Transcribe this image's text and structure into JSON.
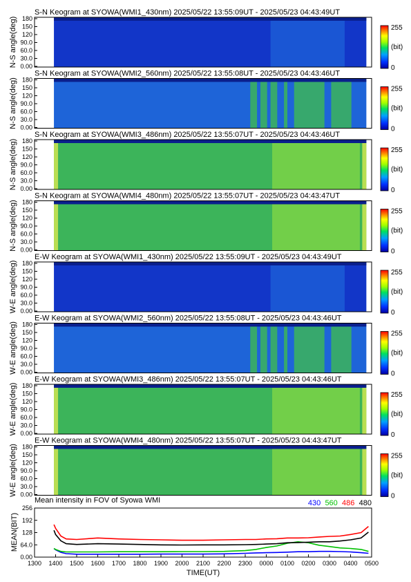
{
  "figure": {
    "panels": [
      {
        "direction": "S-N Keogram",
        "station": "SYOWA",
        "instrument": "WMI1_430nm",
        "start": "2025/05/22 13:55:09UT",
        "end": "2025/05/23 04:43:49UT",
        "ylabel": "N-S angle(deg)",
        "level": "weak",
        "title": "S-N Keogram at SYOWA(WMI1_430nm)   2025/05/22 13:55:09UT - 2025/05/23 04:43:49UT"
      },
      {
        "direction": "S-N Keogram",
        "station": "SYOWA",
        "instrument": "WMI2_560nm",
        "start": "2025/05/22 13:55:08UT",
        "end": "2025/05/23 04:43:46UT",
        "ylabel": "N-S angle(deg)",
        "level": "aurora",
        "title": "S-N Keogram at SYOWA(WMI2_560nm)   2025/05/22 13:55:08UT - 2025/05/23 04:43:46UT"
      },
      {
        "direction": "S-N Keogram",
        "station": "SYOWA",
        "instrument": "WMI3_486nm",
        "start": "2025/05/22 13:55:07UT",
        "end": "2025/05/23 04:43:46UT",
        "ylabel": "N-S angle(deg)",
        "level": "bright",
        "title": "S-N Keogram at SYOWA(WMI3_486nm)   2025/05/22 13:55:07UT - 2025/05/23 04:43:46UT"
      },
      {
        "direction": "S-N Keogram",
        "station": "SYOWA",
        "instrument": "WMI4_480nm",
        "start": "2025/05/22 13:55:07UT",
        "end": "2025/05/23 04:43:47UT",
        "ylabel": "N-S angle(deg)",
        "level": "bright",
        "title": "S-N Keogram at SYOWA(WMI4_480nm)   2025/05/22 13:55:07UT - 2025/05/23 04:43:47UT"
      },
      {
        "direction": "E-W Keogram",
        "station": "SYOWA",
        "instrument": "WMI1_430nm",
        "start": "2025/05/22 13:55:09UT",
        "end": "2025/05/23 04:43:49UT",
        "ylabel": "W-E angle(deg)",
        "level": "weak",
        "title": "E-W Keogram at SYOWA(WMI1_430nm)   2025/05/22 13:55:09UT - 2025/05/23 04:43:49UT"
      },
      {
        "direction": "E-W Keogram",
        "station": "SYOWA",
        "instrument": "WMI2_560nm",
        "start": "2025/05/22 13:55:08UT",
        "end": "2025/05/23 04:43:46UT",
        "ylabel": "W-E angle(deg)",
        "level": "aurora",
        "title": "E-W Keogram at SYOWA(WMI2_560nm)   2025/05/22 13:55:08UT - 2025/05/23 04:43:46UT"
      },
      {
        "direction": "E-W Keogram",
        "station": "SYOWA",
        "instrument": "WMI3_486nm",
        "start": "2025/05/22 13:55:07UT",
        "end": "2025/05/23 04:43:46UT",
        "ylabel": "W-E angle(deg)",
        "level": "bright",
        "title": "E-W Keogram at SYOWA(WMI3_486nm)   2025/05/22 13:55:07UT - 2025/05/23 04:43:46UT"
      },
      {
        "direction": "E-W Keogram",
        "station": "SYOWA",
        "instrument": "WMI4_480nm",
        "start": "2025/05/22 13:55:07UT",
        "end": "2025/05/23 04:43:47UT",
        "ylabel": "W-E angle(deg)",
        "level": "bright",
        "title": "E-W Keogram at SYOWA(WMI4_480nm)   2025/05/22 13:55:07UT - 2025/05/23 04:43:47UT"
      }
    ],
    "panel_yticks": [
      "0.00",
      "30.0",
      "60.0",
      "90.0",
      "120",
      "150",
      "180"
    ],
    "colorbar": {
      "max_label": "255",
      "unit_label": "(bit)",
      "min_label": "0",
      "colors": [
        "#0000a0",
        "#0030ff",
        "#00a0ff",
        "#00e060",
        "#a0ff00",
        "#ffff00",
        "#ff8000",
        "#ff0000"
      ]
    },
    "keogram_colors": {
      "dark": "#0a1f8c",
      "weak": "#1236c8",
      "aurora": "#1e64d8",
      "bright": "#3cb45a",
      "bright_edge": "#9ee63c",
      "band": "#d8e850"
    }
  },
  "chart_data": {
    "type": "line",
    "title": "Mean intensity in FOV of Syowa WMI",
    "xlabel": "TIME(UT)",
    "ylabel": "MEAN(BIT)",
    "xlim": [
      0,
      16
    ],
    "ylim": [
      0,
      256
    ],
    "xticks": [
      "1300",
      "1400",
      "1500",
      "1600",
      "1700",
      "1800",
      "1900",
      "2000",
      "2100",
      "2200",
      "2300",
      "0000",
      "0100",
      "0200",
      "0300",
      "0400",
      "0500"
    ],
    "yticks": [
      "0.00",
      "64.0",
      "128",
      "192",
      "256"
    ],
    "x": [
      0.92,
      1.0,
      1.25,
      1.5,
      2,
      3,
      4,
      5,
      6,
      7,
      8,
      9,
      10,
      10.5,
      11,
      11.5,
      12,
      12.5,
      13,
      13.5,
      14,
      14.5,
      15,
      15.5,
      15.85
    ],
    "series": [
      {
        "name": "430",
        "color": "#0000ff",
        "values": [
          45,
          38,
          25,
          18,
          15,
          15,
          15,
          15,
          16,
          16,
          16,
          17,
          20,
          22,
          23,
          24,
          26,
          28,
          28,
          30,
          30,
          29,
          27,
          23,
          20
        ]
      },
      {
        "name": "560",
        "color": "#00c000",
        "values": [
          45,
          40,
          30,
          27,
          27,
          27,
          28,
          28,
          28,
          29,
          29,
          30,
          34,
          40,
          50,
          58,
          72,
          80,
          75,
          62,
          55,
          48,
          45,
          40,
          30
        ]
      },
      {
        "name": "486",
        "color": "#ff0000",
        "values": [
          170,
          150,
          110,
          95,
          92,
          100,
          95,
          92,
          90,
          88,
          88,
          90,
          92,
          92,
          95,
          96,
          100,
          100,
          101,
          105,
          108,
          110,
          118,
          128,
          160
        ]
      },
      {
        "name": "480",
        "color": "#000000",
        "values": [
          140,
          118,
          85,
          70,
          66,
          70,
          68,
          66,
          64,
          63,
          64,
          64,
          65,
          66,
          68,
          70,
          75,
          76,
          78,
          80,
          80,
          84,
          90,
          100,
          130
        ]
      }
    ],
    "legend_position": "top-right"
  }
}
